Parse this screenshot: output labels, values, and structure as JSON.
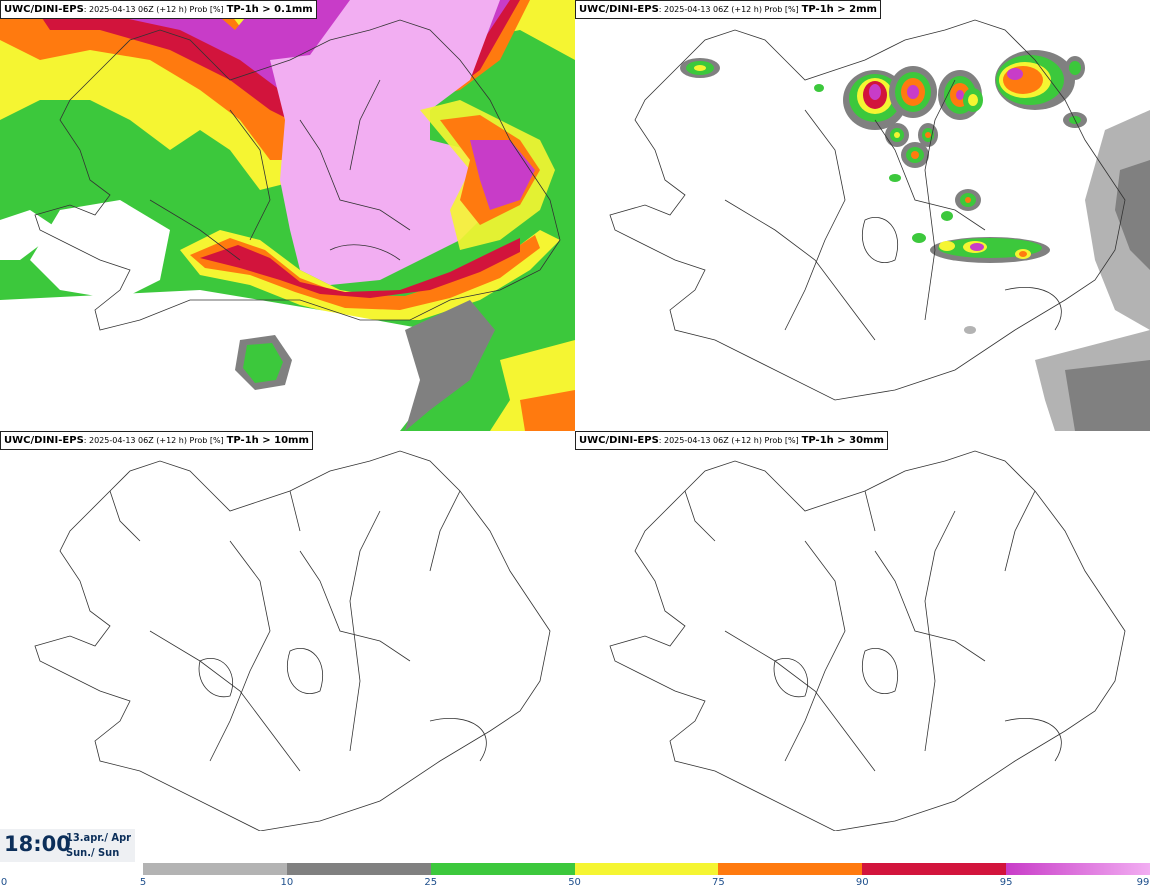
{
  "panels": [
    {
      "source": "UWC/DINI-EPS",
      "run": ": 2025-04-13 06Z (+12 h) Prob [%]",
      "param": "TP-1h > 0.1mm"
    },
    {
      "source": "UWC/DINI-EPS",
      "run": ": 2025-04-13 06Z (+12 h) Prob [%]",
      "param": "TP-1h > 2mm"
    },
    {
      "source": "UWC/DINI-EPS",
      "run": ": 2025-04-13 06Z (+12 h) Prob [%]",
      "param": "TP-1h > 10mm"
    },
    {
      "source": "UWC/DINI-EPS",
      "run": ": 2025-04-13 06Z (+12 h) Prob [%]",
      "param": "TP-1h > 30mm"
    }
  ],
  "time": {
    "hour": "18:00",
    "date": "13.apr./ Apr",
    "day": "Sun./ Sun"
  },
  "colorbar": {
    "ticks": [
      "0",
      "5",
      "10",
      "25",
      "50",
      "75",
      "90",
      "95",
      "99"
    ],
    "colors": [
      "#b3b3b3",
      "#808080",
      "#3cc83c",
      "#f5f532",
      "#ff7a0f",
      "#d2143c",
      "#c83cc8",
      "#f2aef2"
    ]
  }
}
